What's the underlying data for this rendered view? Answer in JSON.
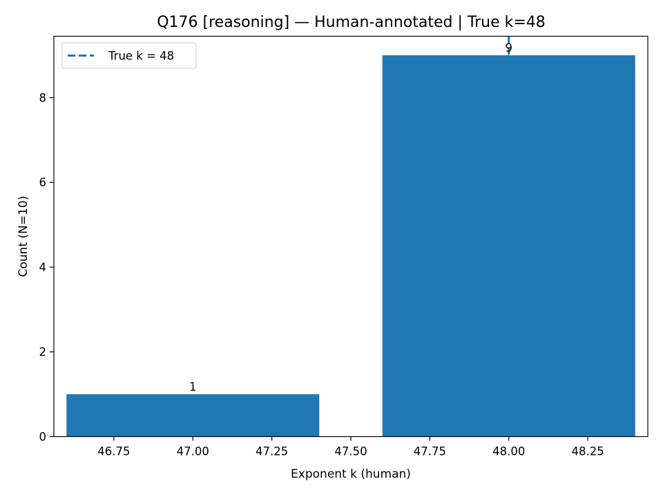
{
  "chart_data": {
    "type": "bar",
    "title": "Q176 [reasoning] — Human-annotated | True k=48",
    "xlabel": "Exponent k (human)",
    "ylabel": "Count (N=10)",
    "bars": [
      {
        "x": 47,
        "width": 0.8,
        "value": 1,
        "label": "1"
      },
      {
        "x": 48,
        "width": 0.8,
        "value": 9,
        "label": "9"
      }
    ],
    "xlim": [
      46.56,
      48.44
    ],
    "ylim": [
      0,
      9.45
    ],
    "xticks": [
      {
        "value": 46.75,
        "label": "46.75"
      },
      {
        "value": 47.0,
        "label": "47.00"
      },
      {
        "value": 47.25,
        "label": "47.25"
      },
      {
        "value": 47.5,
        "label": "47.50"
      },
      {
        "value": 47.75,
        "label": "47.75"
      },
      {
        "value": 48.0,
        "label": "48.00"
      },
      {
        "value": 48.25,
        "label": "48.25"
      }
    ],
    "yticks": [
      {
        "value": 0,
        "label": "0"
      },
      {
        "value": 2,
        "label": "2"
      },
      {
        "value": 4,
        "label": "4"
      },
      {
        "value": 6,
        "label": "6"
      },
      {
        "value": 8,
        "label": "8"
      }
    ],
    "reference_line": {
      "x": 48,
      "style": "dashed"
    },
    "legend": {
      "placement": "top-left",
      "entries": [
        {
          "label": "True k = 48",
          "style": "dashed-line"
        }
      ]
    },
    "grid": false,
    "colors": {
      "bar": "#1f77b4",
      "reference_line": "#1f77b4"
    }
  }
}
